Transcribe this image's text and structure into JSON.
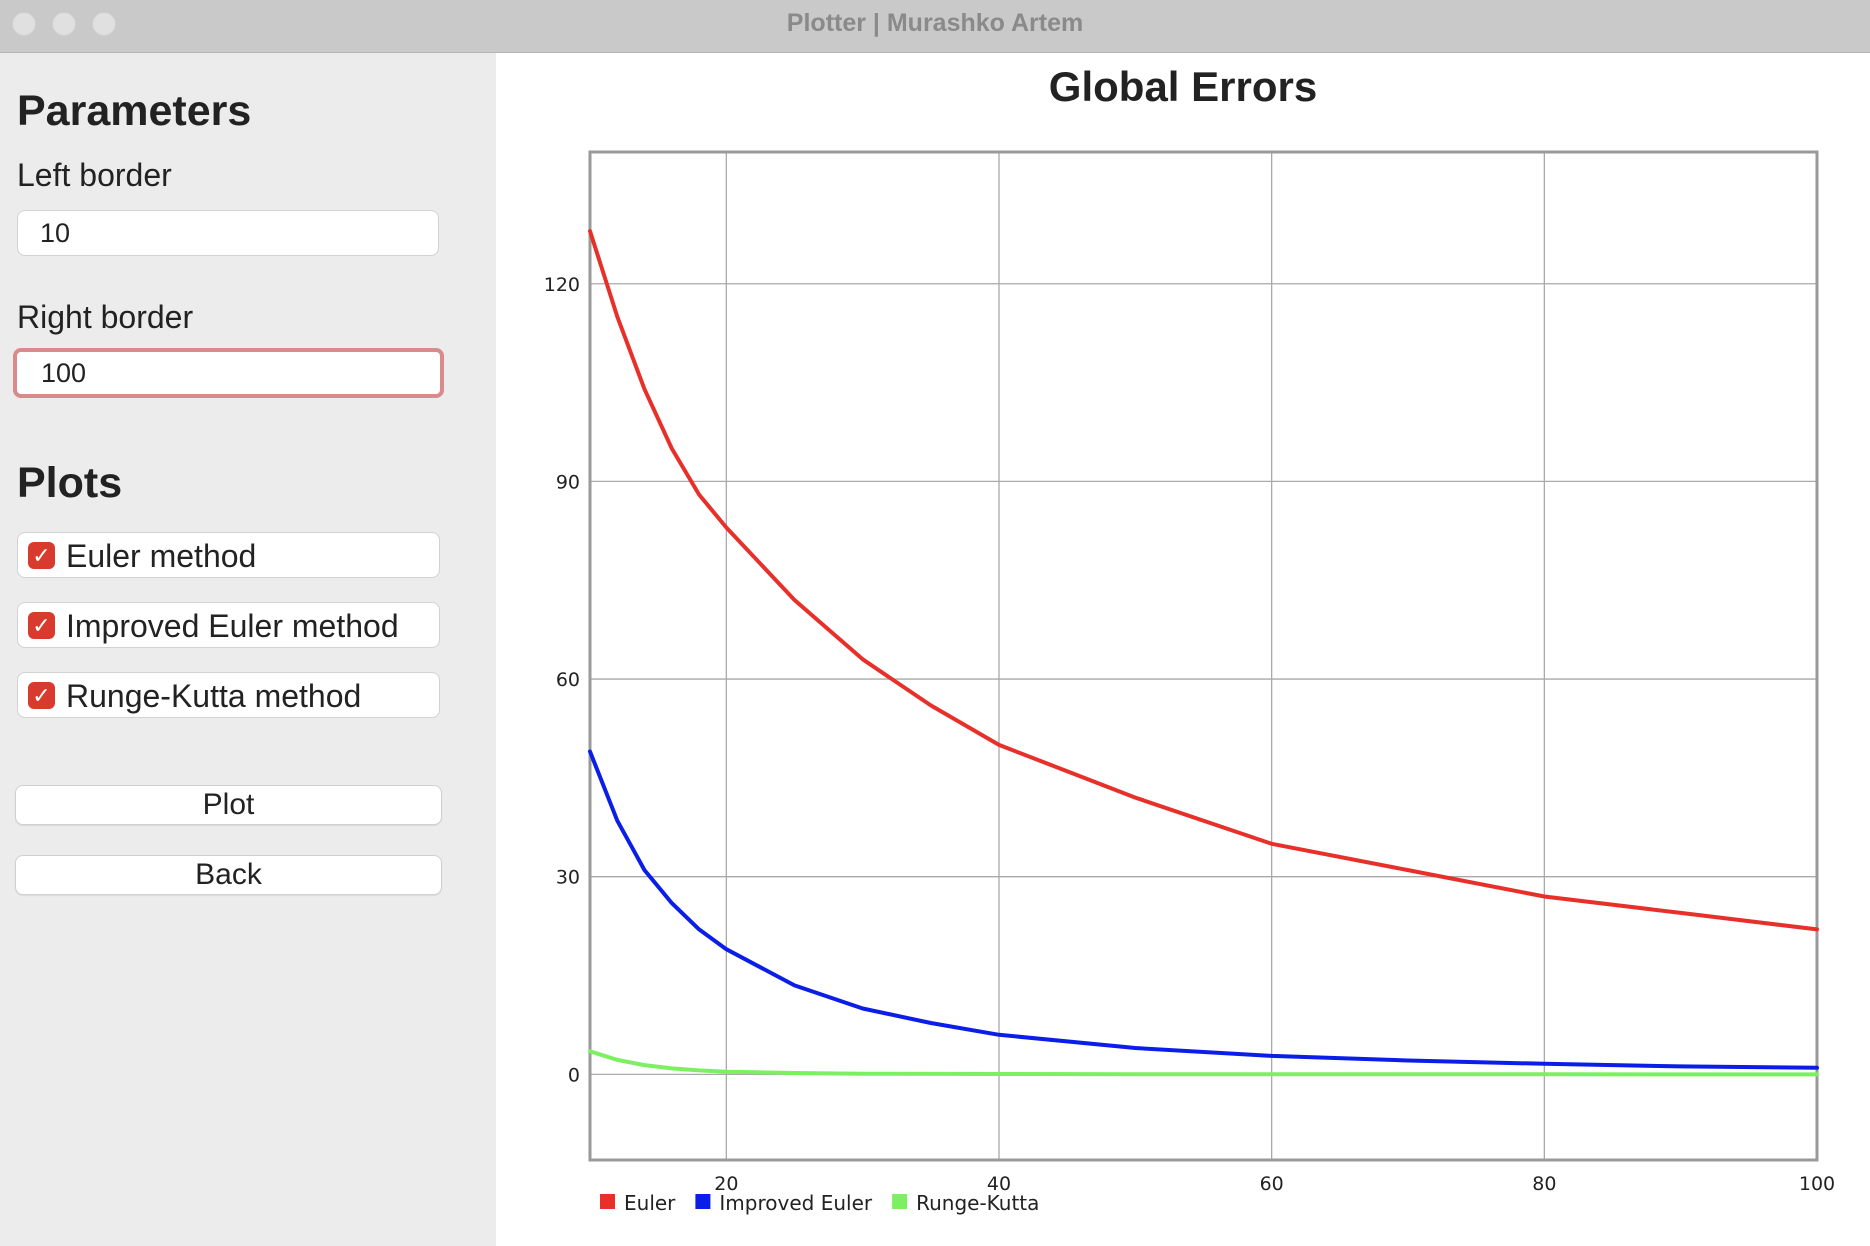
{
  "window": {
    "title": "Plotter | Murashko Artem"
  },
  "sidebar": {
    "parameters_heading": "Parameters",
    "left_border_label": "Left border",
    "left_border_value": "10",
    "right_border_label": "Right border",
    "right_border_value": "100",
    "plots_heading": "Plots",
    "checkboxes": [
      {
        "label": "Euler method",
        "checked": true
      },
      {
        "label": "Improved Euler method",
        "checked": true
      },
      {
        "label": "Runge-Kutta method",
        "checked": true
      }
    ],
    "plot_button": "Plot",
    "back_button": "Back"
  },
  "colors": {
    "accent": "#d83b2d",
    "euler": "#e8302a",
    "improved_euler": "#0a1ee8",
    "runge_kutta": "#7cf060"
  },
  "chart_data": {
    "type": "line",
    "title": "Global Errors",
    "xlabel": "",
    "ylabel": "",
    "xlim": [
      10,
      100
    ],
    "ylim": [
      -13,
      140
    ],
    "xticks": [
      20,
      40,
      60,
      80,
      100
    ],
    "yticks": [
      0,
      30,
      60,
      90,
      120
    ],
    "grid": true,
    "legend_position": "bottom-left",
    "series": [
      {
        "name": "Euler",
        "color": "#e8302a",
        "x": [
          10,
          12,
          14,
          16,
          18,
          20,
          25,
          30,
          35,
          40,
          50,
          60,
          70,
          80,
          90,
          100
        ],
        "y": [
          128,
          115,
          104,
          95,
          88,
          83,
          72,
          63,
          56,
          50,
          42,
          35,
          31,
          27,
          24.5,
          22
        ]
      },
      {
        "name": "Improved Euler",
        "color": "#0a1ee8",
        "x": [
          10,
          12,
          14,
          16,
          18,
          20,
          25,
          30,
          35,
          40,
          50,
          60,
          70,
          80,
          90,
          100
        ],
        "y": [
          49,
          38.5,
          31,
          26,
          22,
          19,
          13.5,
          10,
          7.8,
          6,
          4,
          2.8,
          2.1,
          1.6,
          1.2,
          1
        ]
      },
      {
        "name": "Runge-Kutta",
        "color": "#7cf060",
        "x": [
          10,
          12,
          14,
          16,
          18,
          20,
          25,
          30,
          40,
          50,
          60,
          70,
          80,
          90,
          100
        ],
        "y": [
          3.5,
          2.2,
          1.4,
          0.9,
          0.6,
          0.4,
          0.2,
          0.1,
          0.05,
          0.03,
          0.02,
          0.01,
          0.01,
          0,
          0
        ]
      }
    ]
  }
}
